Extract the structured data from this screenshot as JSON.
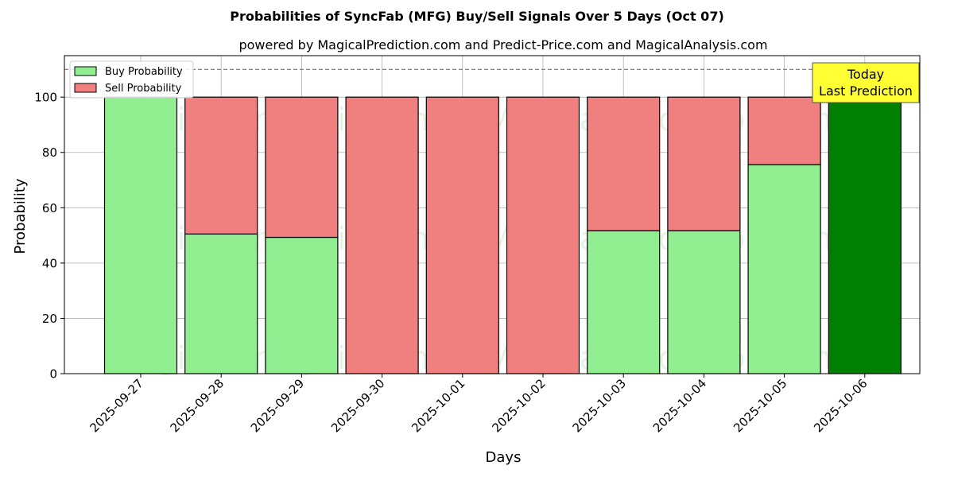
{
  "chart_data": {
    "type": "bar",
    "title": "Probabilities of SyncFab (MFG) Buy/Sell Signals Over 5 Days (Oct 07)",
    "subtitle": "powered by MagicalPrediction.com and Predict-Price.com and MagicalAnalysis.com",
    "xlabel": "Days",
    "ylabel": "Probability",
    "ylim": [
      0,
      115
    ],
    "yticks": [
      0,
      20,
      40,
      60,
      80,
      100
    ],
    "grid": true,
    "stacked": true,
    "legend_position": "top-left",
    "categories": [
      "2025-09-27",
      "2025-09-28",
      "2025-09-29",
      "2025-09-30",
      "2025-10-01",
      "2025-10-02",
      "2025-10-03",
      "2025-10-04",
      "2025-10-05",
      "2025-10-06"
    ],
    "series": [
      {
        "name": "Buy Probability",
        "color": "#90ee90",
        "values": [
          100,
          50.5,
          49.3,
          0,
          0,
          0,
          51.7,
          51.7,
          75.6,
          100
        ]
      },
      {
        "name": "Sell Probability",
        "color": "#f08080",
        "values": [
          0,
          49.5,
          50.7,
          100,
          100,
          100,
          48.3,
          48.3,
          24.4,
          0
        ]
      }
    ],
    "highlight": {
      "index": 9,
      "color": "#008000"
    },
    "reference_line": {
      "y": 110,
      "style": "dashed"
    },
    "annotation": {
      "lines": [
        "Today",
        "Last Prediction"
      ],
      "background": "#ffff33"
    },
    "watermarks": [
      "MagicalAnalysis.com",
      "MagicalPrediction.com",
      "MagicalAnalysis.com",
      "MagicalPrediction.com",
      "MagicalAnalysis.com",
      "MagicalPrediction.com"
    ]
  }
}
